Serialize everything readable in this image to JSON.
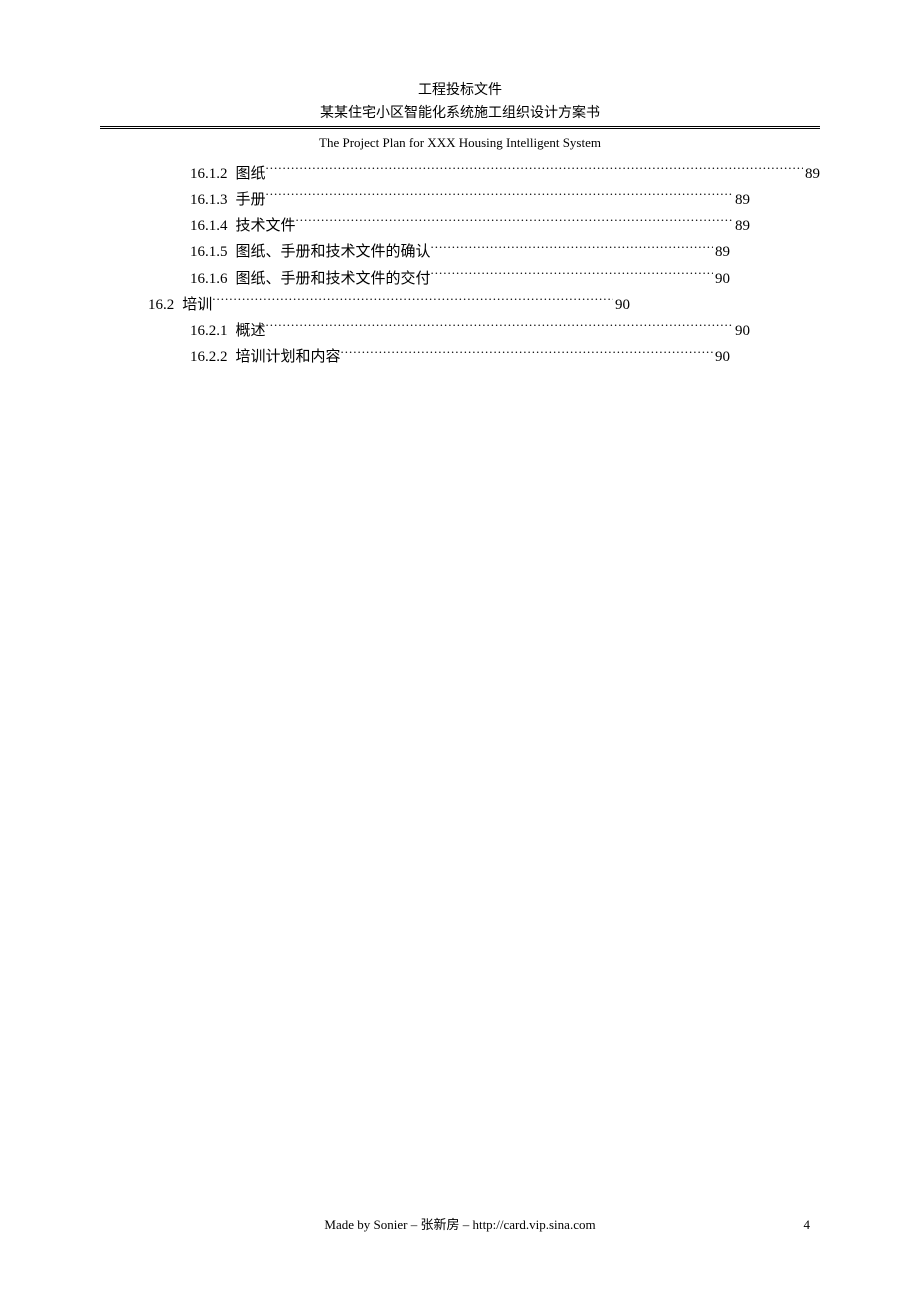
{
  "header": {
    "line1": "工程投标文件",
    "line2": "某某住宅小区智能化系统施工组织设计方案书",
    "line3": "The Project Plan for XXX Housing Intelligent System"
  },
  "toc": [
    {
      "level": 3,
      "num": "16.1.2",
      "label": "图纸",
      "page": "89",
      "width": "full"
    },
    {
      "level": 3,
      "num": "16.1.3",
      "label": "手册",
      "page": "89",
      "width": "mid1"
    },
    {
      "level": 3,
      "num": "16.1.4",
      "label": "技术文件",
      "page": "89",
      "width": "mid1"
    },
    {
      "level": 3,
      "num": "16.1.5",
      "label": "图纸、手册和技术文件的确认",
      "page": "89",
      "width": "mid2"
    },
    {
      "level": 3,
      "num": "16.1.6",
      "label": "图纸、手册和技术文件的交付",
      "page": "90",
      "width": "mid2"
    },
    {
      "level": 2,
      "num": "16.2",
      "label": "培训",
      "page": "90",
      "width": "short"
    },
    {
      "level": 3,
      "num": "16.2.1",
      "label": "概述",
      "page": "90",
      "width": "mid1"
    },
    {
      "level": 3,
      "num": "16.2.2",
      "label": "培训计划和内容",
      "page": "90",
      "width": "mid2"
    }
  ],
  "footer": {
    "text": "Made by Sonier –   张新房  – http://card.vip.sina.com",
    "pageNumber": "4"
  },
  "style": {
    "widths": {
      "full": 0,
      "mid1": 70,
      "mid2": 90,
      "short": 190
    }
  }
}
